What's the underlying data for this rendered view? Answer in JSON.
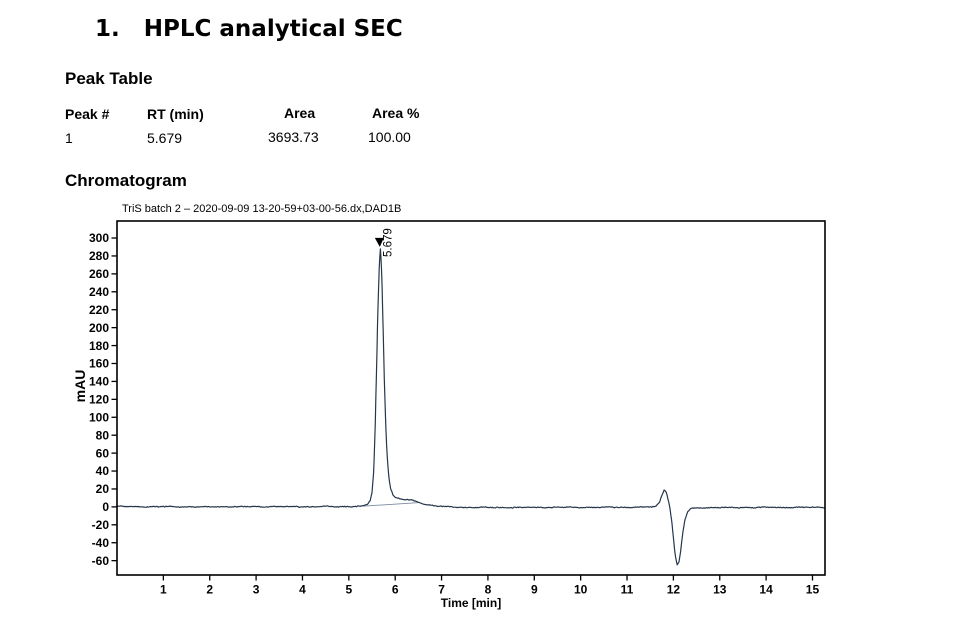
{
  "page": {
    "title_number": "1.",
    "title": "HPLC analytical SEC"
  },
  "peak_table": {
    "heading": "Peak Table",
    "columns": [
      "Peak #",
      "RT (min)",
      "Area",
      "Area %"
    ],
    "rows": [
      [
        "1",
        "5.679",
        "3693.73",
        "100.00"
      ]
    ]
  },
  "chromatogram": {
    "heading": "Chromatogram"
  },
  "chart_data": {
    "type": "line",
    "title": "TriS batch 2 – 2020-09-09 13-20-59+03-00-56.dx,DAD1B",
    "xlabel": "Time [min]",
    "ylabel": "mAU",
    "xlim": [
      0,
      15.27
    ],
    "ylim": [
      -76,
      319
    ],
    "x_ticks": [
      1,
      2,
      3,
      4,
      5,
      6,
      7,
      8,
      9,
      10,
      11,
      12,
      13,
      14,
      15
    ],
    "y_ticks": [
      -60,
      -40,
      -20,
      0,
      20,
      40,
      60,
      80,
      100,
      120,
      140,
      160,
      180,
      200,
      220,
      240,
      260,
      280,
      300
    ],
    "grid": false,
    "legend": null,
    "line_color": "#26364b",
    "baseline_color": "#7a8aa0",
    "frame_color": "#000000",
    "noise_mau": 0.55,
    "peaks": [
      {
        "peak_no": 1,
        "rt_min": 5.679,
        "area": 3693.73,
        "area_pct": 100.0,
        "apex_mau": 289
      }
    ],
    "peak_annotation": {
      "label": "5.679",
      "rt": 5.679,
      "apex_mau": 289
    },
    "system_peak": {
      "bump_rt": 11.8,
      "bump_mau": 19.5,
      "dip_rt": 12.08,
      "dip_mau": -65
    },
    "integration_baseline": {
      "t1": 5.3,
      "v1": 0.8,
      "t2": 6.52,
      "v2": 4.8
    },
    "anchors": [
      [
        0,
        0.4
      ],
      [
        0.8,
        0.2
      ],
      [
        2,
        0.1
      ],
      [
        3.2,
        0.3
      ],
      [
        4.4,
        0.2
      ],
      [
        5.0,
        0.4
      ],
      [
        5.3,
        0.8
      ],
      [
        5.4,
        2.5
      ],
      [
        5.46,
        7
      ],
      [
        5.5,
        16
      ],
      [
        5.54,
        42
      ],
      [
        5.57,
        92
      ],
      [
        5.6,
        158
      ],
      [
        5.62,
        204
      ],
      [
        5.64,
        243
      ],
      [
        5.66,
        271
      ],
      [
        5.679,
        289
      ],
      [
        5.7,
        274
      ],
      [
        5.72,
        241
      ],
      [
        5.74,
        199
      ],
      [
        5.76,
        153
      ],
      [
        5.79,
        101
      ],
      [
        5.82,
        63
      ],
      [
        5.86,
        35
      ],
      [
        5.9,
        21
      ],
      [
        5.95,
        13.5
      ],
      [
        6.0,
        10.5
      ],
      [
        6.1,
        8.8
      ],
      [
        6.2,
        8.2
      ],
      [
        6.35,
        7.6
      ],
      [
        6.5,
        5.2
      ],
      [
        6.65,
        2.8
      ],
      [
        6.85,
        1.2
      ],
      [
        7.1,
        0.2
      ],
      [
        7.5,
        -0.5
      ],
      [
        8.2,
        -0.7
      ],
      [
        9.0,
        -0.6
      ],
      [
        9.8,
        -0.5
      ],
      [
        10.6,
        -0.4
      ],
      [
        11.2,
        -0.3
      ],
      [
        11.5,
        -0.2
      ],
      [
        11.62,
        0.6
      ],
      [
        11.7,
        5
      ],
      [
        11.76,
        14
      ],
      [
        11.8,
        19.5
      ],
      [
        11.84,
        17.5
      ],
      [
        11.88,
        10
      ],
      [
        11.92,
        1
      ],
      [
        11.96,
        -14
      ],
      [
        12.0,
        -34
      ],
      [
        12.04,
        -54
      ],
      [
        12.08,
        -65
      ],
      [
        12.12,
        -62
      ],
      [
        12.16,
        -48
      ],
      [
        12.2,
        -30
      ],
      [
        12.25,
        -14
      ],
      [
        12.31,
        -5.5
      ],
      [
        12.38,
        -2
      ],
      [
        12.5,
        -1
      ],
      [
        13.2,
        -0.7
      ],
      [
        14.2,
        -0.6
      ],
      [
        15.27,
        -0.5
      ]
    ]
  }
}
